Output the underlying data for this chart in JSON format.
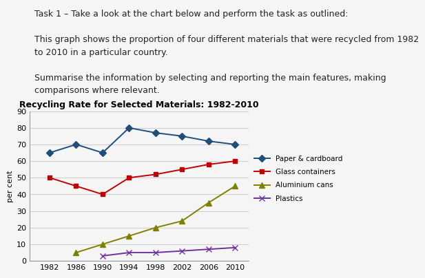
{
  "title": "Recycling Rate for Selected Materials: 1982-2010",
  "ylabel": "per cent",
  "years": [
    1982,
    1986,
    1990,
    1994,
    1998,
    2002,
    2006,
    2010
  ],
  "text_lines": [
    "Task 1 – Take a look at the chart below and perform the task as outlined:",
    "",
    "This graph shows the proportion of four different materials that were recycled from 1982\nto 2010 in a particular country.",
    "",
    "Summarise the information by selecting and reporting the main features, making\ncomparisons where relevant."
  ],
  "series": {
    "Paper & cardboard": {
      "values": [
        65,
        70,
        65,
        80,
        77,
        75,
        72,
        70
      ],
      "color": "#1F4E79",
      "marker": "D",
      "markersize": 5
    },
    "Glass containers": {
      "values": [
        50,
        45,
        40,
        50,
        52,
        55,
        58,
        60
      ],
      "color": "#C00000",
      "marker": "s",
      "markersize": 5
    },
    "Aluminium cans": {
      "values": [
        null,
        5,
        10,
        15,
        20,
        24,
        35,
        45
      ],
      "color": "#808000",
      "marker": "^",
      "markersize": 6
    },
    "Plastics": {
      "values": [
        null,
        null,
        3,
        5,
        5,
        6,
        7,
        8
      ],
      "color": "#7030A0",
      "marker": "x",
      "markersize": 6
    }
  },
  "ylim": [
    0,
    90
  ],
  "yticks": [
    0,
    10,
    20,
    30,
    40,
    50,
    60,
    70,
    80,
    90
  ],
  "background_color": "#f5f5f5",
  "grid_color": "#cccccc",
  "text_fontsize": 9,
  "title_fontsize": 9
}
